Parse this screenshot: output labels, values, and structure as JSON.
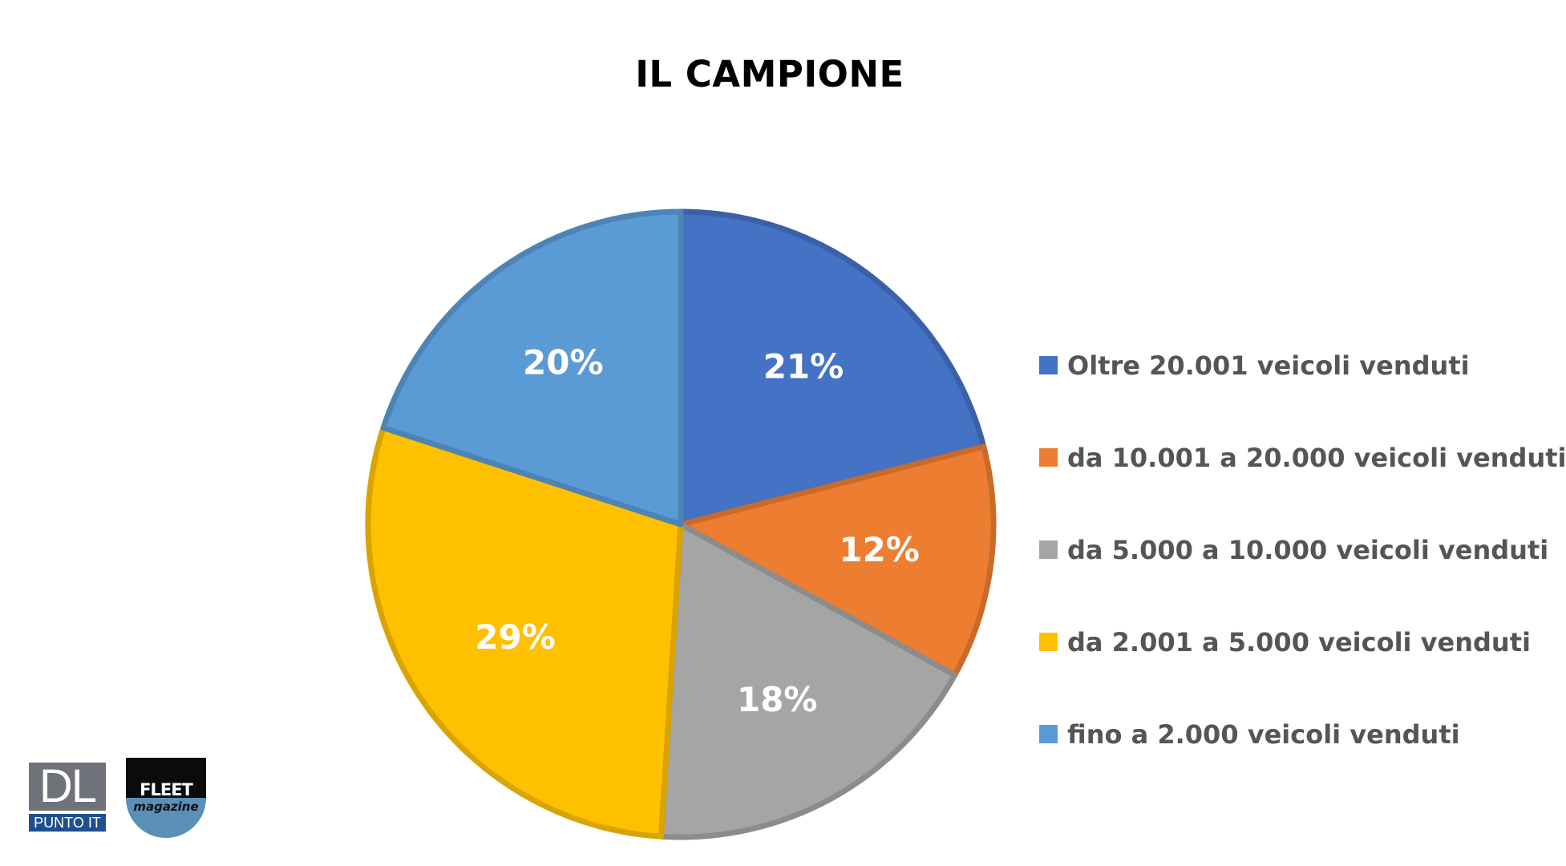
{
  "chart_data": {
    "type": "pie",
    "title": "IL CAMPIONE",
    "slices": [
      {
        "label": "Oltre 20.001 veicoli venduti",
        "value": 21,
        "value_label": "21%",
        "color": "#4472C4"
      },
      {
        "label": "da 10.001 a 20.000 veicoli venduti",
        "value": 12,
        "value_label": "12%",
        "color": "#ED7D31"
      },
      {
        "label": "da 5.000 a 10.000 veicoli venduti",
        "value": 18,
        "value_label": "18%",
        "color": "#A5A5A5"
      },
      {
        "label": "da 2.001 a 5.000 veicoli venduti",
        "value": 29,
        "value_label": "29%",
        "color": "#FFC000"
      },
      {
        "label": "fino a 2.000 veicoli venduti",
        "value": 20,
        "value_label": "20%",
        "color": "#5B9BD5"
      }
    ],
    "legend_position": "right"
  },
  "logos": {
    "dl": {
      "main": "DL",
      "sub": "PUNTO IT"
    },
    "fleet": {
      "main": "FLEET",
      "sub": "magazine"
    }
  }
}
